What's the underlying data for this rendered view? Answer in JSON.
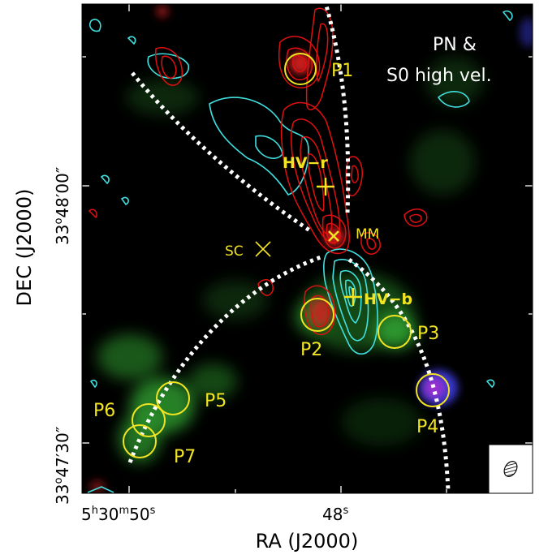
{
  "axes": {
    "xlabel": "RA (J2000)",
    "ylabel": "DEC (J2000)",
    "xticks": [
      {
        "h": "5",
        "m": "30",
        "s": "50"
      },
      {
        "s": "48"
      }
    ],
    "yticks": [
      {
        "d": "33",
        "am": "48",
        "as": "00"
      },
      {
        "d": "33",
        "am": "47",
        "as": "30"
      }
    ]
  },
  "panel_title": [
    "PN &",
    "S0 high vel."
  ],
  "labels": {
    "hv_r": "HV−r",
    "hv_b": "HV−b",
    "mm": "MM",
    "sc": "SC",
    "p1": "P1",
    "p2": "P2",
    "p3": "P3",
    "p4": "P4",
    "p5": "P5",
    "p6": "P6",
    "p7": "P7"
  },
  "colors": {
    "background": "#000000",
    "red_contour": "#e01010",
    "cyan_contour": "#40e0e0",
    "circle": "#f2e422",
    "marker": "#f2e422",
    "arc": "#ffffff",
    "green_emission": "#2fa02f",
    "blue_emission": "#3a3ad8"
  }
}
